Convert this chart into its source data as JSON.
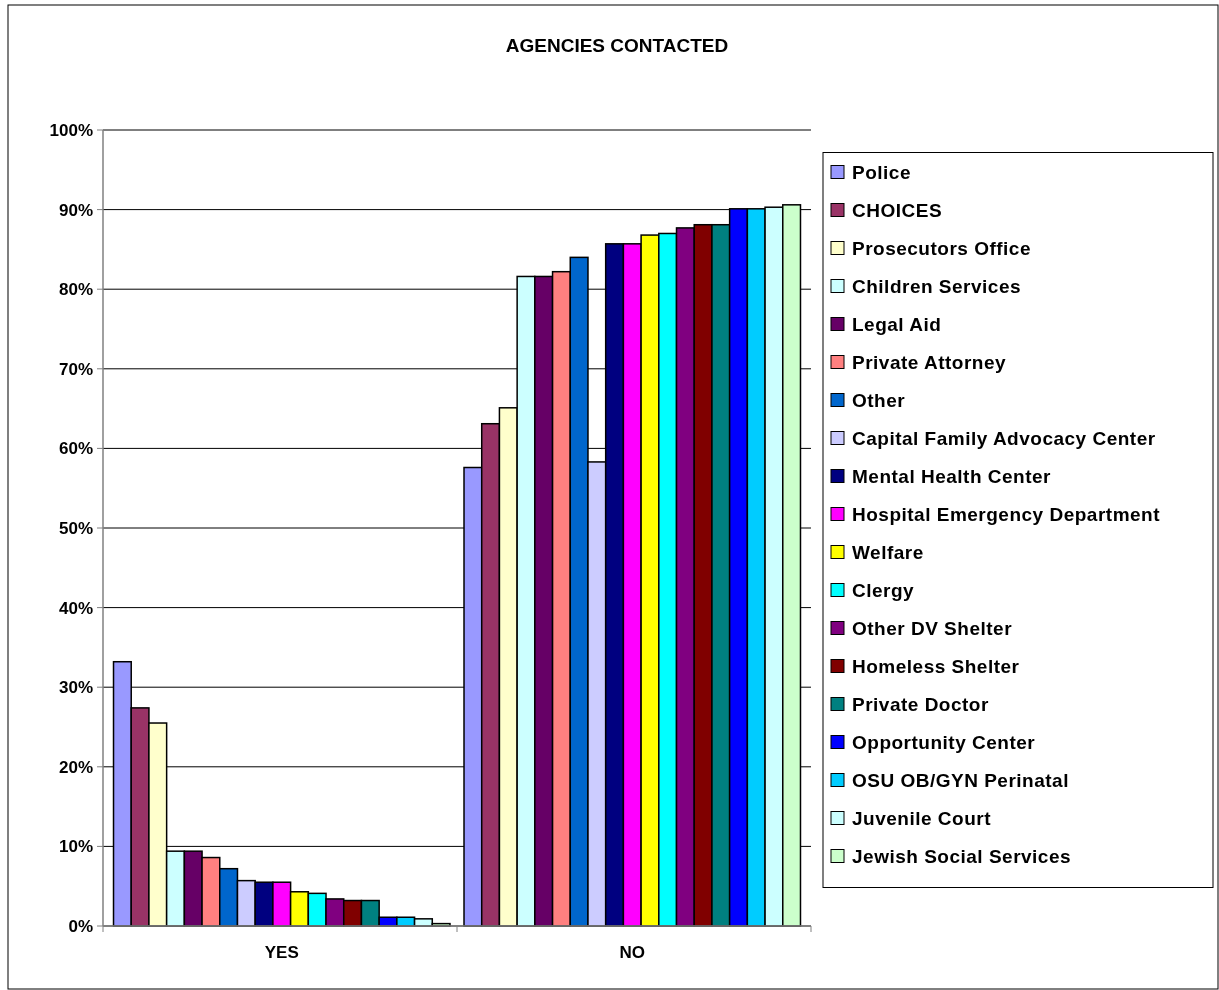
{
  "chart_data": {
    "type": "bar",
    "title": "AGENCIES CONTACTED",
    "categories": [
      "YES",
      "NO"
    ],
    "series": [
      {
        "name": "Police",
        "color": "#9999ff",
        "values": [
          33.2,
          57.6
        ]
      },
      {
        "name": "CHOICES",
        "color": "#993366",
        "values": [
          27.4,
          63.1
        ]
      },
      {
        "name": "Prosecutors Office",
        "color": "#ffffcc",
        "values": [
          25.5,
          65.1
        ]
      },
      {
        "name": "Children Services",
        "color": "#ccffff",
        "values": [
          9.4,
          81.6
        ]
      },
      {
        "name": "Legal Aid",
        "color": "#660066",
        "values": [
          9.4,
          81.6
        ]
      },
      {
        "name": "Private Attorney",
        "color": "#ff8080",
        "values": [
          8.6,
          82.2
        ]
      },
      {
        "name": "Other",
        "color": "#0066cc",
        "values": [
          7.2,
          84.0
        ]
      },
      {
        "name": "Capital Family Advocacy Center",
        "color": "#ccccff",
        "values": [
          5.7,
          58.3
        ]
      },
      {
        "name": "Mental Health Center",
        "color": "#000080",
        "values": [
          5.5,
          85.7
        ]
      },
      {
        "name": "Hospital Emergency Department",
        "color": "#ff00ff",
        "values": [
          5.5,
          85.7
        ]
      },
      {
        "name": "Welfare",
        "color": "#ffff00",
        "values": [
          4.3,
          86.8
        ]
      },
      {
        "name": "Clergy",
        "color": "#00ffff",
        "values": [
          4.1,
          87.0
        ]
      },
      {
        "name": "Other DV Shelter",
        "color": "#800080",
        "values": [
          3.4,
          87.7
        ]
      },
      {
        "name": "Homeless Shelter",
        "color": "#800000",
        "values": [
          3.2,
          88.1
        ]
      },
      {
        "name": "Private Doctor",
        "color": "#008080",
        "values": [
          3.2,
          88.1
        ]
      },
      {
        "name": "Opportunity Center",
        "color": "#0000ff",
        "values": [
          1.1,
          90.1
        ]
      },
      {
        "name": "OSU OB/GYN Perinatal",
        "color": "#00ccff",
        "values": [
          1.1,
          90.1
        ]
      },
      {
        "name": "Juvenile Court",
        "color": "#ccffff",
        "values": [
          0.9,
          90.3
        ]
      },
      {
        "name": "Jewish Social Services",
        "color": "#ccffcc",
        "values": [
          0.3,
          90.6
        ]
      }
    ],
    "ylim": [
      0,
      100
    ],
    "yticks": [
      {
        "value": 0,
        "label": "0%"
      },
      {
        "value": 10,
        "label": "10%"
      },
      {
        "value": 20,
        "label": "20%"
      },
      {
        "value": 30,
        "label": "30%"
      },
      {
        "value": 40,
        "label": "40%"
      },
      {
        "value": 50,
        "label": "50%"
      },
      {
        "value": 60,
        "label": "60%"
      },
      {
        "value": 70,
        "label": "70%"
      },
      {
        "value": 80,
        "label": "80%"
      },
      {
        "value": 90,
        "label": "90%"
      },
      {
        "value": 100,
        "label": "100%"
      }
    ],
    "grid": "y",
    "legend": "right"
  }
}
